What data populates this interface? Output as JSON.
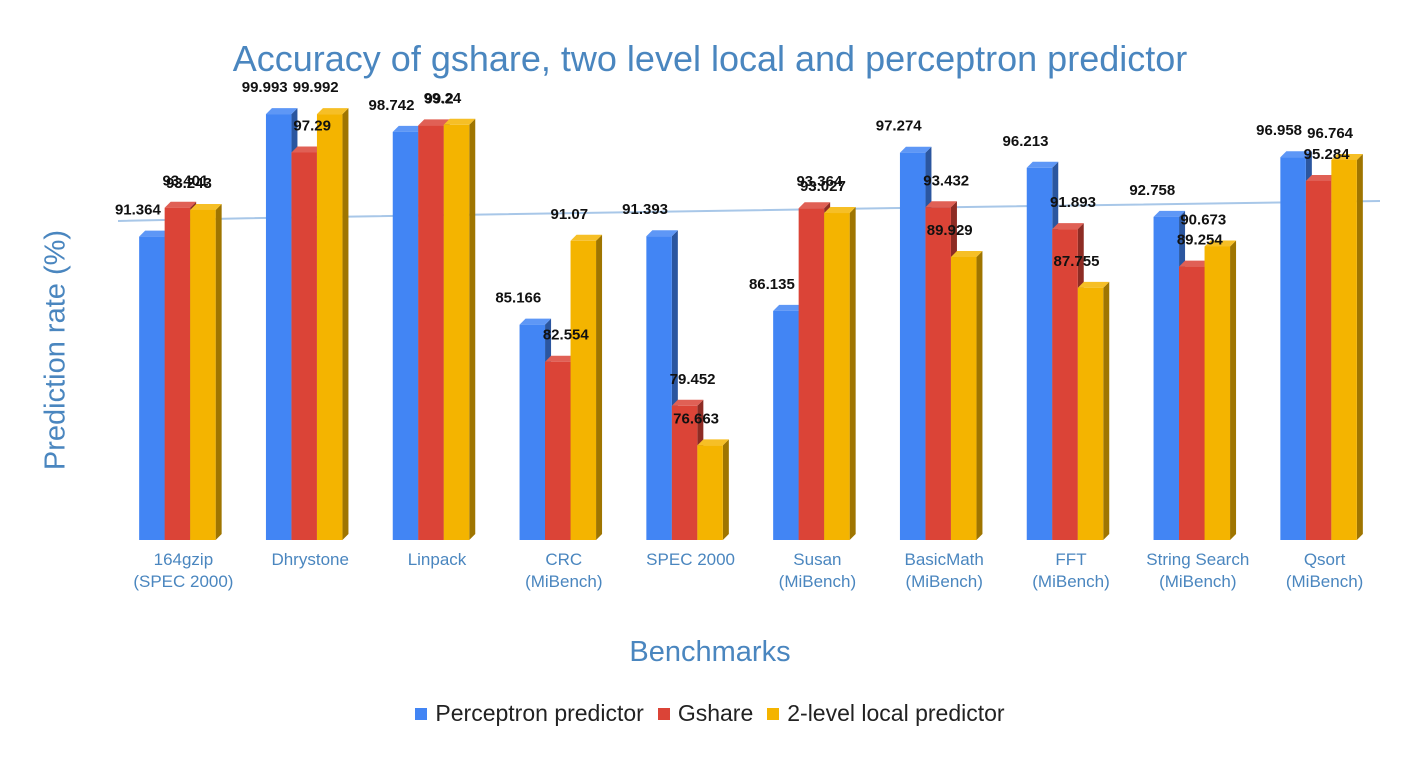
{
  "chart_data": {
    "type": "bar",
    "title": "Accuracy of gshare, two level local and perceptron predictor",
    "xlabel": "Benchmarks",
    "ylabel": "Prediction rate (%)",
    "ylim": [
      70,
      100
    ],
    "categories": [
      [
        "164gzip",
        "(SPEC 2000)"
      ],
      [
        "Dhrystone"
      ],
      [
        "Linpack"
      ],
      [
        "CRC",
        "(MiBench)"
      ],
      [
        "SPEC 2000"
      ],
      [
        "Susan",
        "(MiBench)"
      ],
      [
        "BasicMath",
        "(MiBench)"
      ],
      [
        "FFT",
        "(MiBench)"
      ],
      [
        "String Search",
        "(MiBench)"
      ],
      [
        "Qsort",
        "(MiBench)"
      ]
    ],
    "series": [
      {
        "name": "Perceptron predictor",
        "color": "#4285f4",
        "values": [
          91.364,
          99.993,
          98.742,
          85.166,
          91.393,
          86.135,
          97.274,
          96.213,
          92.758,
          96.958
        ],
        "labels": [
          "91.364",
          "99.993",
          "98.742",
          "85.166",
          "91.393",
          "86.135",
          "97.274",
          "96.213",
          "92.758",
          "96.958"
        ]
      },
      {
        "name": "Gshare",
        "color": "#db4437",
        "values": [
          93.401,
          97.29,
          99.2,
          82.554,
          79.452,
          93.364,
          93.432,
          91.893,
          89.254,
          95.284
        ],
        "labels": [
          "93.401",
          "97.29",
          "99.2",
          "82.554",
          "79.452",
          "93.364",
          "93.432",
          "91.893",
          "89.254",
          "95.284"
        ]
      },
      {
        "name": "2-level local predictor",
        "color": "#f4b400",
        "values": [
          93.243,
          99.992,
          99.24,
          91.07,
          76.663,
          93.027,
          89.929,
          87.755,
          90.673,
          96.764
        ],
        "labels": [
          "93.243",
          "99.992",
          "99.24",
          "91.07",
          "76.663",
          "93.027",
          "89.929",
          "87.755",
          "90.673",
          "96.764"
        ]
      }
    ],
    "legend": "bottom",
    "trendline": {
      "color": "#a8c7e8"
    }
  }
}
